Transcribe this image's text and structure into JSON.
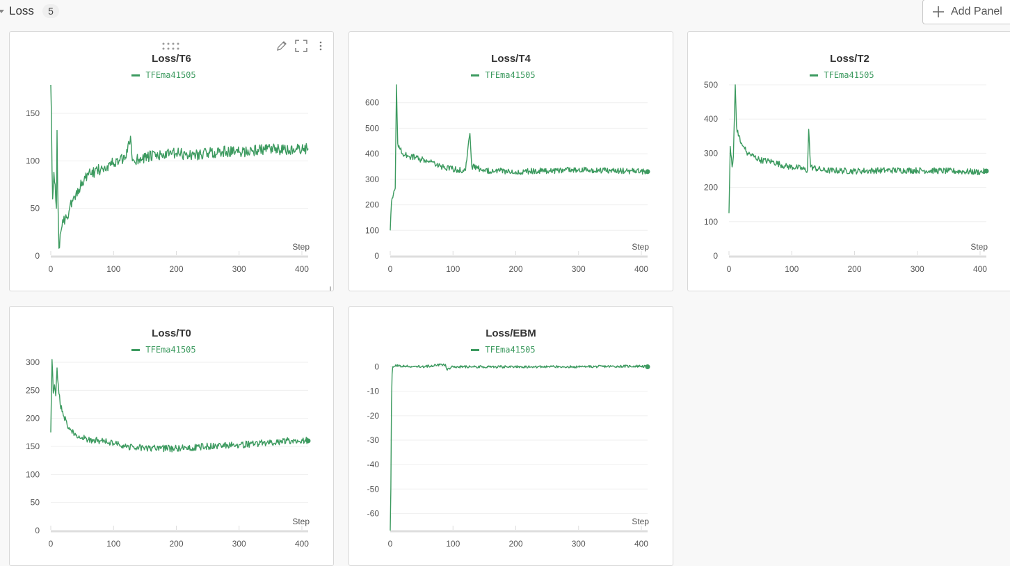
{
  "section": {
    "title": "Loss",
    "count": "5"
  },
  "toolbar": {
    "add_panel_label": "Add Panel"
  },
  "colors": {
    "series": "#3c9a5f",
    "grid": "#efefef",
    "axis": "#dedede"
  },
  "chart_data": [
    {
      "type": "line",
      "title": "Loss/T6",
      "legend": [
        "TFEma41505"
      ],
      "xlabel": "Step",
      "ylabel": "",
      "xlim": [
        0,
        410
      ],
      "ylim": [
        0,
        180
      ],
      "xticks": [
        0,
        100,
        200,
        300,
        400
      ],
      "yticks": [
        0,
        50,
        100,
        150
      ],
      "series": [
        {
          "name": "TFEma41505",
          "end_marker": false,
          "noise": 6,
          "keypoints": [
            [
              0,
              180
            ],
            [
              1,
              150
            ],
            [
              2,
              90
            ],
            [
              3,
              60
            ],
            [
              5,
              88
            ],
            [
              7,
              75
            ],
            [
              9,
              50
            ],
            [
              10,
              132
            ],
            [
              11,
              70
            ],
            [
              13,
              8
            ],
            [
              16,
              25
            ],
            [
              20,
              35
            ],
            [
              25,
              40
            ],
            [
              30,
              50
            ],
            [
              40,
              65
            ],
            [
              50,
              78
            ],
            [
              60,
              85
            ],
            [
              70,
              88
            ],
            [
              80,
              92
            ],
            [
              90,
              95
            ],
            [
              100,
              98
            ],
            [
              110,
              100
            ],
            [
              120,
              103
            ],
            [
              127,
              126
            ],
            [
              130,
              100
            ],
            [
              150,
              104
            ],
            [
              180,
              106
            ],
            [
              200,
              108
            ],
            [
              220,
              106
            ],
            [
              250,
              108
            ],
            [
              280,
              110
            ],
            [
              300,
              109
            ],
            [
              320,
              111
            ],
            [
              350,
              112
            ],
            [
              380,
              111
            ],
            [
              400,
              112
            ],
            [
              410,
              113
            ]
          ]
        }
      ]
    },
    {
      "type": "line",
      "title": "Loss/T4",
      "legend": [
        "TFEma41505"
      ],
      "xlabel": "Step",
      "ylabel": "",
      "xlim": [
        0,
        410
      ],
      "ylim": [
        0,
        670
      ],
      "xticks": [
        0,
        100,
        200,
        300,
        400
      ],
      "yticks": [
        0,
        100,
        200,
        300,
        400,
        500,
        600
      ],
      "series": [
        {
          "name": "TFEma41505",
          "end_marker": true,
          "noise": 12,
          "keypoints": [
            [
              0,
              100
            ],
            [
              2,
              210
            ],
            [
              5,
              240
            ],
            [
              8,
              265
            ],
            [
              10,
              670
            ],
            [
              12,
              440
            ],
            [
              15,
              420
            ],
            [
              20,
              400
            ],
            [
              30,
              390
            ],
            [
              40,
              385
            ],
            [
              60,
              370
            ],
            [
              80,
              350
            ],
            [
              100,
              340
            ],
            [
              120,
              335
            ],
            [
              127,
              480
            ],
            [
              130,
              350
            ],
            [
              150,
              335
            ],
            [
              200,
              330
            ],
            [
              250,
              333
            ],
            [
              300,
              336
            ],
            [
              350,
              334
            ],
            [
              400,
              332
            ],
            [
              410,
              330
            ]
          ]
        }
      ]
    },
    {
      "type": "line",
      "title": "Loss/T2",
      "legend": [
        "TFEma41505"
      ],
      "xlabel": "Step",
      "ylabel": "",
      "xlim": [
        0,
        410
      ],
      "ylim": [
        0,
        500
      ],
      "xticks": [
        0,
        100,
        200,
        300,
        400
      ],
      "yticks": [
        0,
        100,
        200,
        300,
        400,
        500
      ],
      "series": [
        {
          "name": "TFEma41505",
          "end_marker": true,
          "noise": 9,
          "keypoints": [
            [
              0,
              125
            ],
            [
              2,
              320
            ],
            [
              5,
              260
            ],
            [
              7,
              290
            ],
            [
              10,
              500
            ],
            [
              12,
              380
            ],
            [
              15,
              350
            ],
            [
              20,
              330
            ],
            [
              30,
              300
            ],
            [
              50,
              280
            ],
            [
              70,
              275
            ],
            [
              90,
              262
            ],
            [
              110,
              258
            ],
            [
              125,
              250
            ],
            [
              127,
              370
            ],
            [
              130,
              260
            ],
            [
              150,
              250
            ],
            [
              200,
              248
            ],
            [
              250,
              250
            ],
            [
              300,
              250
            ],
            [
              350,
              248
            ],
            [
              400,
              245
            ],
            [
              410,
              248
            ]
          ]
        }
      ]
    },
    {
      "type": "line",
      "title": "Loss/T0",
      "legend": [
        "TFEma41505"
      ],
      "xlabel": "Step",
      "ylabel": "",
      "xlim": [
        0,
        410
      ],
      "ylim": [
        0,
        305
      ],
      "xticks": [
        0,
        100,
        200,
        300,
        400
      ],
      "yticks": [
        0,
        50,
        100,
        150,
        200,
        250,
        300
      ],
      "series": [
        {
          "name": "TFEma41505",
          "end_marker": true,
          "noise": 6,
          "keypoints": [
            [
              0,
              175
            ],
            [
              2,
              305
            ],
            [
              4,
              245
            ],
            [
              6,
              260
            ],
            [
              8,
              240
            ],
            [
              10,
              290
            ],
            [
              12,
              260
            ],
            [
              15,
              225
            ],
            [
              20,
              205
            ],
            [
              30,
              180
            ],
            [
              40,
              170
            ],
            [
              60,
              162
            ],
            [
              80,
              160
            ],
            [
              100,
              155
            ],
            [
              120,
              150
            ],
            [
              150,
              147
            ],
            [
              200,
              146
            ],
            [
              250,
              150
            ],
            [
              300,
              153
            ],
            [
              350,
              157
            ],
            [
              380,
              160
            ],
            [
              400,
              162
            ],
            [
              410,
              160
            ]
          ]
        }
      ]
    },
    {
      "type": "line",
      "title": "Loss/EBM",
      "legend": [
        "TFEma41505"
      ],
      "xlabel": "Step",
      "ylabel": "",
      "xlim": [
        0,
        410
      ],
      "ylim": [
        -67,
        3
      ],
      "xticks": [
        0,
        100,
        200,
        300,
        400
      ],
      "yticks": [
        0,
        -10,
        -20,
        -30,
        -40,
        -50,
        -60
      ],
      "series": [
        {
          "name": "TFEma41505",
          "end_marker": true,
          "noise": 0.5,
          "keypoints": [
            [
              0,
              -67
            ],
            [
              1,
              -50
            ],
            [
              2,
              -15
            ],
            [
              3,
              -3
            ],
            [
              4,
              0
            ],
            [
              10,
              0.5
            ],
            [
              50,
              0
            ],
            [
              88,
              1
            ],
            [
              90,
              -1
            ],
            [
              100,
              0
            ],
            [
              200,
              0
            ],
            [
              300,
              0
            ],
            [
              400,
              0.3
            ],
            [
              410,
              0
            ]
          ]
        }
      ]
    }
  ]
}
